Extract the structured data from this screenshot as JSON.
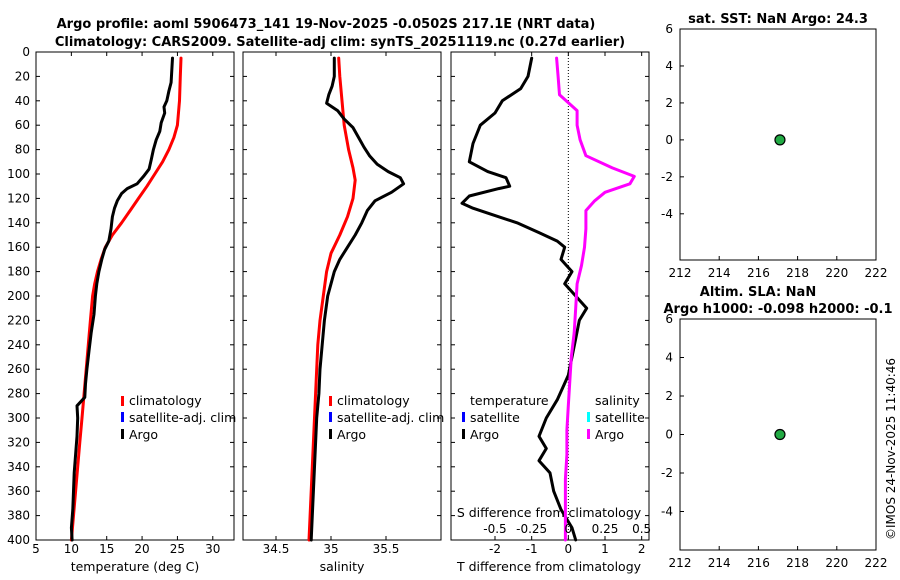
{
  "figure": {
    "title_line1": "Argo profile: aoml 5906473_141 19-Nov-2025 -0.0502S 217.1E (NRT data)",
    "title_line2": "Climatology: CARS2009. Satellite-adj clim: synTS_20251119.nc (0.27d earlier)",
    "timestamp": "©IMOS 24-Nov-2025 11:40:46"
  },
  "colors": {
    "climatology": "#ff0000",
    "satellite_adj": "#0000ff",
    "argo": "#000000",
    "salinity_argo_diff": "#ff00ff",
    "salinity_satellite_diff": "#00ffff",
    "marker_fill": "#22aa44"
  },
  "chart_data": [
    {
      "id": "temperature",
      "type": "line",
      "xlabel": "temperature (deg C)",
      "ylabel": "",
      "xlim": [
        5,
        33
      ],
      "ylim": [
        400,
        0
      ],
      "xticks": [
        "5",
        "10",
        "15",
        "20",
        "25",
        "30"
      ],
      "xtick_values": [
        5,
        10,
        15,
        20,
        25,
        30
      ],
      "yticks": [
        "0",
        "20",
        "40",
        "60",
        "80",
        "100",
        "120",
        "140",
        "160",
        "180",
        "200",
        "220",
        "240",
        "260",
        "280",
        "300",
        "320",
        "340",
        "360",
        "380",
        "400"
      ],
      "ytick_values": [
        0,
        20,
        40,
        60,
        80,
        100,
        120,
        140,
        160,
        180,
        200,
        220,
        240,
        260,
        280,
        300,
        320,
        340,
        360,
        380,
        400
      ],
      "legend": [
        "climatology",
        "satellite-adj. clim",
        "Argo"
      ],
      "series": [
        {
          "name": "climatology",
          "color": "#ff0000",
          "points": [
            [
              25.5,
              5
            ],
            [
              25.4,
              20
            ],
            [
              25.3,
              40
            ],
            [
              25.0,
              60
            ],
            [
              24.5,
              70
            ],
            [
              23.8,
              80
            ],
            [
              22.9,
              90
            ],
            [
              21.8,
              100
            ],
            [
              20.7,
              110
            ],
            [
              19.5,
              120
            ],
            [
              18.3,
              130
            ],
            [
              17.1,
              140
            ],
            [
              15.8,
              150
            ],
            [
              14.8,
              160
            ],
            [
              14.2,
              170
            ],
            [
              13.7,
              180
            ],
            [
              13.3,
              190
            ],
            [
              13.0,
              200
            ],
            [
              12.7,
              220
            ],
            [
              12.4,
              240
            ],
            [
              12.1,
              260
            ],
            [
              11.8,
              280
            ],
            [
              11.5,
              300
            ],
            [
              11.2,
              320
            ],
            [
              10.9,
              340
            ],
            [
              10.6,
              360
            ],
            [
              10.3,
              380
            ],
            [
              10.0,
              400
            ]
          ]
        },
        {
          "name": "Argo",
          "color": "#000000",
          "points": [
            [
              24.3,
              5
            ],
            [
              24.2,
              15
            ],
            [
              24.1,
              25
            ],
            [
              23.8,
              32
            ],
            [
              23.5,
              40
            ],
            [
              23.1,
              45
            ],
            [
              23.2,
              50
            ],
            [
              22.7,
              58
            ],
            [
              22.5,
              65
            ],
            [
              22.0,
              72
            ],
            [
              21.6,
              80
            ],
            [
              21.3,
              88
            ],
            [
              21.0,
              96
            ],
            [
              20.2,
              102
            ],
            [
              19.3,
              108
            ],
            [
              17.9,
              112
            ],
            [
              17.1,
              116
            ],
            [
              16.5,
              122
            ],
            [
              16.1,
              128
            ],
            [
              15.8,
              135
            ],
            [
              15.6,
              145
            ],
            [
              15.3,
              155
            ],
            [
              14.7,
              162
            ],
            [
              14.3,
              170
            ],
            [
              13.9,
              180
            ],
            [
              13.6,
              190
            ],
            [
              13.4,
              200
            ],
            [
              13.2,
              215
            ],
            [
              12.8,
              230
            ],
            [
              12.5,
              245
            ],
            [
              12.2,
              260
            ],
            [
              12.0,
              272
            ],
            [
              11.9,
              283
            ],
            [
              10.8,
              290
            ],
            [
              10.9,
              300
            ],
            [
              10.8,
              315
            ],
            [
              10.6,
              330
            ],
            [
              10.4,
              345
            ],
            [
              10.3,
              360
            ],
            [
              10.2,
              375
            ],
            [
              10.0,
              390
            ],
            [
              10.1,
              400
            ]
          ]
        }
      ]
    },
    {
      "id": "salinity",
      "type": "line",
      "xlabel": "salinity",
      "ylabel": "",
      "xlim": [
        34.2,
        36.0
      ],
      "ylim": [
        400,
        0
      ],
      "xticks": [
        "34.5",
        "35",
        "35.5"
      ],
      "xtick_values": [
        34.5,
        35.0,
        35.5
      ],
      "legend": [
        "climatology",
        "satellite-adj. clim",
        "Argo"
      ],
      "series": [
        {
          "name": "climatology",
          "color": "#ff0000",
          "points": [
            [
              35.07,
              5
            ],
            [
              35.08,
              20
            ],
            [
              35.1,
              40
            ],
            [
              35.12,
              60
            ],
            [
              35.16,
              80
            ],
            [
              35.2,
              95
            ],
            [
              35.22,
              105
            ],
            [
              35.2,
              120
            ],
            [
              35.15,
              135
            ],
            [
              35.08,
              150
            ],
            [
              35.0,
              165
            ],
            [
              34.96,
              180
            ],
            [
              34.93,
              200
            ],
            [
              34.9,
              220
            ],
            [
              34.88,
              240
            ],
            [
              34.87,
              260
            ],
            [
              34.86,
              280
            ],
            [
              34.85,
              300
            ],
            [
              34.84,
              320
            ],
            [
              34.83,
              340
            ],
            [
              34.82,
              360
            ],
            [
              34.81,
              380
            ],
            [
              34.8,
              400
            ]
          ]
        },
        {
          "name": "Argo",
          "color": "#000000",
          "points": [
            [
              35.03,
              5
            ],
            [
              35.03,
              20
            ],
            [
              35.01,
              28
            ],
            [
              34.98,
              35
            ],
            [
              34.96,
              42
            ],
            [
              35.06,
              48
            ],
            [
              35.12,
              55
            ],
            [
              35.2,
              62
            ],
            [
              35.25,
              70
            ],
            [
              35.3,
              78
            ],
            [
              35.35,
              85
            ],
            [
              35.42,
              92
            ],
            [
              35.52,
              98
            ],
            [
              35.63,
              103
            ],
            [
              35.66,
              108
            ],
            [
              35.55,
              115
            ],
            [
              35.4,
              122
            ],
            [
              35.33,
              130
            ],
            [
              35.28,
              140
            ],
            [
              35.22,
              150
            ],
            [
              35.15,
              160
            ],
            [
              35.08,
              170
            ],
            [
              35.03,
              180
            ],
            [
              35.0,
              190
            ],
            [
              34.97,
              200
            ],
            [
              34.94,
              220
            ],
            [
              34.92,
              240
            ],
            [
              34.9,
              260
            ],
            [
              34.89,
              280
            ],
            [
              34.87,
              300
            ],
            [
              34.86,
              320
            ],
            [
              34.85,
              340
            ],
            [
              34.84,
              360
            ],
            [
              34.83,
              380
            ],
            [
              34.82,
              400
            ]
          ]
        }
      ]
    },
    {
      "id": "difference",
      "type": "line",
      "xlabel": "T difference from climatology",
      "xlabel_top": "S difference from climatology",
      "xlim": [
        -3.2,
        2.2
      ],
      "ylim": [
        400,
        0
      ],
      "xticks": [
        "-2",
        "-1",
        "0",
        "1",
        "2"
      ],
      "xtick_values": [
        -2,
        -1,
        0,
        1,
        2
      ],
      "s_ticks": [
        "-0.5",
        "-0.25",
        "0",
        "0.25",
        "0.5"
      ],
      "legend_temperature_header": "temperature",
      "legend_salinity_header": "salinity",
      "legend_temperature": [
        "satellite",
        "Argo"
      ],
      "legend_salinity": [
        "satellite",
        "Argo"
      ],
      "series": [
        {
          "name": "temperature Argo",
          "color": "#000000",
          "points": [
            [
              -1.0,
              5
            ],
            [
              -1.1,
              20
            ],
            [
              -1.3,
              30
            ],
            [
              -1.8,
              40
            ],
            [
              -2.0,
              50
            ],
            [
              -2.4,
              60
            ],
            [
              -2.6,
              75
            ],
            [
              -2.7,
              90
            ],
            [
              -2.2,
              98
            ],
            [
              -1.7,
              103
            ],
            [
              -1.6,
              110
            ],
            [
              -1.9,
              112
            ],
            [
              -2.7,
              118
            ],
            [
              -2.9,
              124
            ],
            [
              -2.6,
              128
            ],
            [
              -2.1,
              133
            ],
            [
              -1.4,
              140
            ],
            [
              -0.8,
              148
            ],
            [
              -0.3,
              155
            ],
            [
              -0.1,
              160
            ],
            [
              -0.2,
              170
            ],
            [
              0.1,
              180
            ],
            [
              -0.1,
              190
            ],
            [
              0.2,
              200
            ],
            [
              0.5,
              210
            ],
            [
              0.3,
              220
            ],
            [
              0.2,
              235
            ],
            [
              0.1,
              250
            ],
            [
              0.0,
              265
            ],
            [
              -0.3,
              285
            ],
            [
              -0.6,
              300
            ],
            [
              -0.8,
              315
            ],
            [
              -0.6,
              325
            ],
            [
              -0.8,
              335
            ],
            [
              -0.5,
              345
            ],
            [
              -0.4,
              360
            ],
            [
              -0.2,
              375
            ],
            [
              0.1,
              390
            ],
            [
              0.2,
              400
            ]
          ]
        },
        {
          "name": "salinity Argo",
          "color": "#ff00ff",
          "points": [
            [
              -0.08,
              5
            ],
            [
              -0.07,
              20
            ],
            [
              -0.06,
              35
            ],
            [
              0.06,
              48
            ],
            [
              0.06,
              60
            ],
            [
              0.08,
              72
            ],
            [
              0.12,
              85
            ],
            [
              0.3,
              95
            ],
            [
              0.45,
              102
            ],
            [
              0.42,
              108
            ],
            [
              0.25,
              115
            ],
            [
              0.18,
              122
            ],
            [
              0.12,
              130
            ],
            [
              0.12,
              145
            ],
            [
              0.11,
              160
            ],
            [
              0.09,
              175
            ],
            [
              0.06,
              190
            ],
            [
              0.05,
              210
            ],
            [
              0.04,
              230
            ],
            [
              0.02,
              250
            ],
            [
              0.01,
              270
            ],
            [
              0.0,
              290
            ],
            [
              -0.01,
              310
            ],
            [
              -0.01,
              330
            ],
            [
              -0.02,
              350
            ],
            [
              -0.02,
              370
            ],
            [
              -0.02,
              390
            ],
            [
              -0.02,
              400
            ]
          ]
        }
      ]
    },
    {
      "id": "sst",
      "type": "scatter",
      "title": "sat. SST: NaN Argo: 24.3",
      "xlim": [
        212,
        222
      ],
      "ylim": [
        -6.5,
        6
      ],
      "xticks": [
        "212",
        "214",
        "216",
        "218",
        "220",
        "222"
      ],
      "xtick_values": [
        212,
        214,
        216,
        218,
        220,
        222
      ],
      "yticks": [
        "6",
        "4",
        "2",
        "0",
        "-2",
        "-4"
      ],
      "ytick_values": [
        6,
        4,
        2,
        0,
        -2,
        -4
      ],
      "points": [
        [
          217.1,
          0
        ]
      ]
    },
    {
      "id": "sla",
      "type": "scatter",
      "title_line1": "Altim. SLA: NaN",
      "title_line2": "Argo h1000: -0.098 h2000: -0.1",
      "xlim": [
        212,
        222
      ],
      "ylim": [
        -6,
        6
      ],
      "xticks": [
        "212",
        "214",
        "216",
        "218",
        "220",
        "222"
      ],
      "xtick_values": [
        212,
        214,
        216,
        218,
        220,
        222
      ],
      "yticks": [
        "6",
        "4",
        "2",
        "0",
        "-2",
        "-4"
      ],
      "ytick_values": [
        6,
        4,
        2,
        0,
        -2,
        -4
      ],
      "points": [
        [
          217.1,
          0
        ]
      ]
    }
  ]
}
